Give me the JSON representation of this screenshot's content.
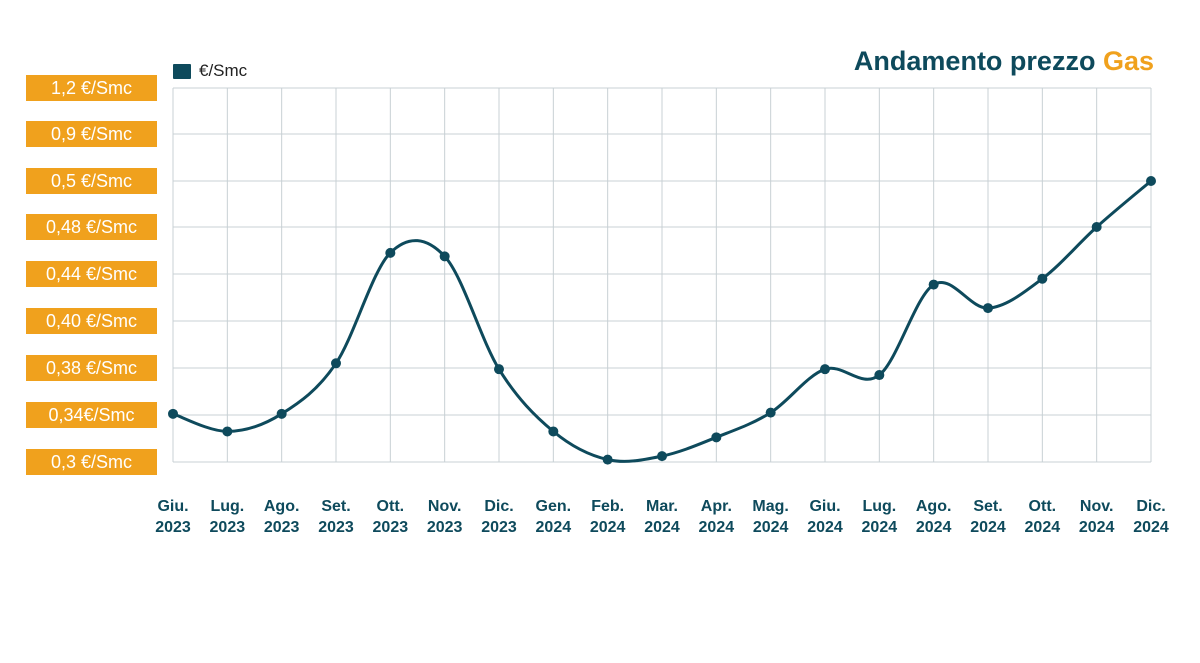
{
  "title": {
    "main": "Andamento prezzo",
    "accent": "Gas"
  },
  "legend": {
    "label": "€/Smc"
  },
  "colors": {
    "line": "#0e4a5c",
    "accent": "#f0a11d",
    "grid": "#c8d0d4",
    "label_text": "#ffffff"
  },
  "chart_data": {
    "type": "line",
    "title": "Andamento prezzo Gas",
    "ylabel": "",
    "xlabel": "",
    "grid": true,
    "legend_position": "top-left",
    "y_tick_labels": [
      "1,2 €/Smc",
      "0,9 €/Smc",
      "0,5 €/Smc",
      "0,48 €/Smc",
      "0,44 €/Smc",
      "0,40 €/Smc",
      "0,38 €/Smc",
      "0,34€/Smc",
      "0,3 €/Smc"
    ],
    "y_tick_values": [
      1.2,
      0.9,
      0.5,
      0.48,
      0.44,
      0.4,
      0.38,
      0.34,
      0.3
    ],
    "categories": [
      [
        "Giu.",
        "2023"
      ],
      [
        "Lug.",
        "2023"
      ],
      [
        "Ago.",
        "2023"
      ],
      [
        "Set.",
        "2023"
      ],
      [
        "Ott.",
        "2023"
      ],
      [
        "Nov.",
        "2023"
      ],
      [
        "Dic.",
        "2023"
      ],
      [
        "Gen.",
        "2024"
      ],
      [
        "Feb.",
        "2024"
      ],
      [
        "Mar.",
        "2024"
      ],
      [
        "Apr.",
        "2024"
      ],
      [
        "Mag.",
        "2024"
      ],
      [
        "Giu.",
        "2024"
      ],
      [
        "Lug.",
        "2024"
      ],
      [
        "Ago.",
        "2024"
      ],
      [
        "Set.",
        "2024"
      ],
      [
        "Ott.",
        "2024"
      ],
      [
        "Nov.",
        "2024"
      ],
      [
        "Dic.",
        "2024"
      ]
    ],
    "series": [
      {
        "name": "€/Smc",
        "values": [
          0.341,
          0.326,
          0.341,
          0.382,
          0.458,
          0.455,
          0.379,
          0.326,
          0.302,
          0.305,
          0.321,
          0.342,
          0.379,
          0.374,
          0.431,
          0.411,
          0.436,
          0.48,
          0.5
        ]
      }
    ]
  }
}
